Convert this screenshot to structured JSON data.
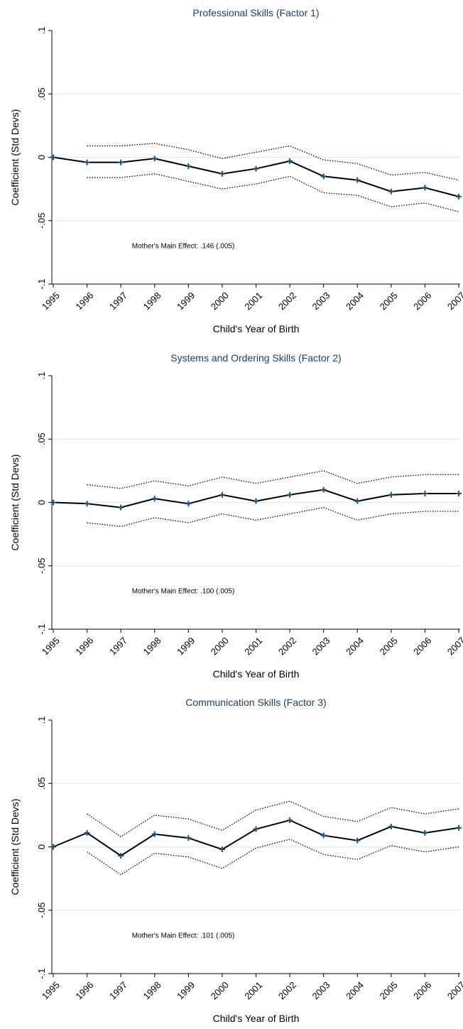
{
  "colors": {
    "grid": "#dbeeee",
    "line": "#000000",
    "marker": "#1f4e79",
    "title": "#1f3b63"
  },
  "chart_data": [
    {
      "type": "line",
      "title": "Professional Skills (Factor 1)",
      "xlabel": "Child's Year of Birth",
      "ylabel": "Coefficient (Std Devs)",
      "ylim": [
        -0.1,
        0.1
      ],
      "yticks": [
        0.1,
        0.05,
        0,
        -0.05,
        -0.1
      ],
      "ytick_labels": [
        ".1",
        ".05",
        "0",
        "-.05",
        "-.1"
      ],
      "grid": true,
      "x": [
        "1995",
        "1996",
        "1997",
        "1998",
        "1999",
        "2000",
        "2001",
        "2002",
        "2003",
        "2004",
        "2005",
        "2006",
        "2007"
      ],
      "series": [
        {
          "style": "solid",
          "values": [
            0.0,
            -0.004,
            -0.004,
            -0.001,
            -0.007,
            -0.013,
            -0.009,
            -0.003,
            -0.015,
            -0.018,
            -0.027,
            -0.024,
            -0.031
          ]
        },
        {
          "style": "dotted",
          "values": [
            null,
            0.009,
            0.009,
            0.011,
            0.006,
            -0.001,
            0.004,
            0.009,
            -0.002,
            -0.005,
            -0.014,
            -0.012,
            -0.018
          ]
        },
        {
          "style": "dotted",
          "values": [
            null,
            -0.016,
            -0.016,
            -0.013,
            -0.019,
            -0.025,
            -0.021,
            -0.015,
            -0.028,
            -0.03,
            -0.039,
            -0.036,
            -0.043
          ]
        }
      ],
      "annotation": "Mother's Main Effect: .146 (.005)"
    },
    {
      "type": "line",
      "title": "Systems and Ordering Skills (Factor 2)",
      "xlabel": "Child's Year of Birth",
      "ylabel": "Coefficient (Std Devs)",
      "ylim": [
        -0.1,
        0.1
      ],
      "yticks": [
        0.1,
        0.05,
        0,
        -0.05,
        -0.1
      ],
      "ytick_labels": [
        ".1",
        ".05",
        "0",
        "-.05",
        "-.1"
      ],
      "grid": true,
      "x": [
        "1995",
        "1996",
        "1997",
        "1998",
        "1999",
        "2000",
        "2001",
        "2002",
        "2003",
        "2004",
        "2005",
        "2006",
        "2007"
      ],
      "series": [
        {
          "style": "solid",
          "values": [
            0.0,
            -0.001,
            -0.004,
            0.003,
            -0.001,
            0.006,
            0.001,
            0.006,
            0.01,
            0.001,
            0.006,
            0.007,
            0.007
          ]
        },
        {
          "style": "dotted",
          "values": [
            null,
            0.014,
            0.011,
            0.017,
            0.013,
            0.02,
            0.015,
            0.02,
            0.025,
            0.015,
            0.02,
            0.022,
            0.022
          ]
        },
        {
          "style": "dotted",
          "values": [
            null,
            -0.016,
            -0.019,
            -0.012,
            -0.016,
            -0.009,
            -0.014,
            -0.009,
            -0.004,
            -0.014,
            -0.009,
            -0.007,
            -0.007
          ]
        }
      ],
      "annotation": "Mother's Main Effect: .100 (.005)"
    },
    {
      "type": "line",
      "title": "Communication Skills (Factor 3)",
      "xlabel": "Child's Year of Birth",
      "ylabel": "Coefficient (Std Devs)",
      "ylim": [
        -0.1,
        0.1
      ],
      "yticks": [
        0.1,
        0.05,
        0,
        -0.05,
        -0.1
      ],
      "ytick_labels": [
        ".1",
        ".05",
        "0",
        "-.05",
        "-.1"
      ],
      "grid": true,
      "x": [
        "1995",
        "1996",
        "1997",
        "1998",
        "1999",
        "2000",
        "2001",
        "2002",
        "2003",
        "2004",
        "2005",
        "2006",
        "2007"
      ],
      "series": [
        {
          "style": "solid",
          "values": [
            0.0,
            0.011,
            -0.007,
            0.01,
            0.007,
            -0.002,
            0.014,
            0.021,
            0.009,
            0.005,
            0.016,
            0.011,
            0.015
          ]
        },
        {
          "style": "dotted",
          "values": [
            null,
            0.026,
            0.008,
            0.025,
            0.022,
            0.013,
            0.029,
            0.036,
            0.024,
            0.02,
            0.031,
            0.026,
            0.03
          ]
        },
        {
          "style": "dotted",
          "values": [
            null,
            -0.004,
            -0.022,
            -0.005,
            -0.008,
            -0.017,
            -0.001,
            0.006,
            -0.006,
            -0.01,
            0.001,
            -0.004,
            0.0
          ]
        }
      ],
      "annotation": "Mother's Main Effect: .101 (.005)"
    }
  ]
}
